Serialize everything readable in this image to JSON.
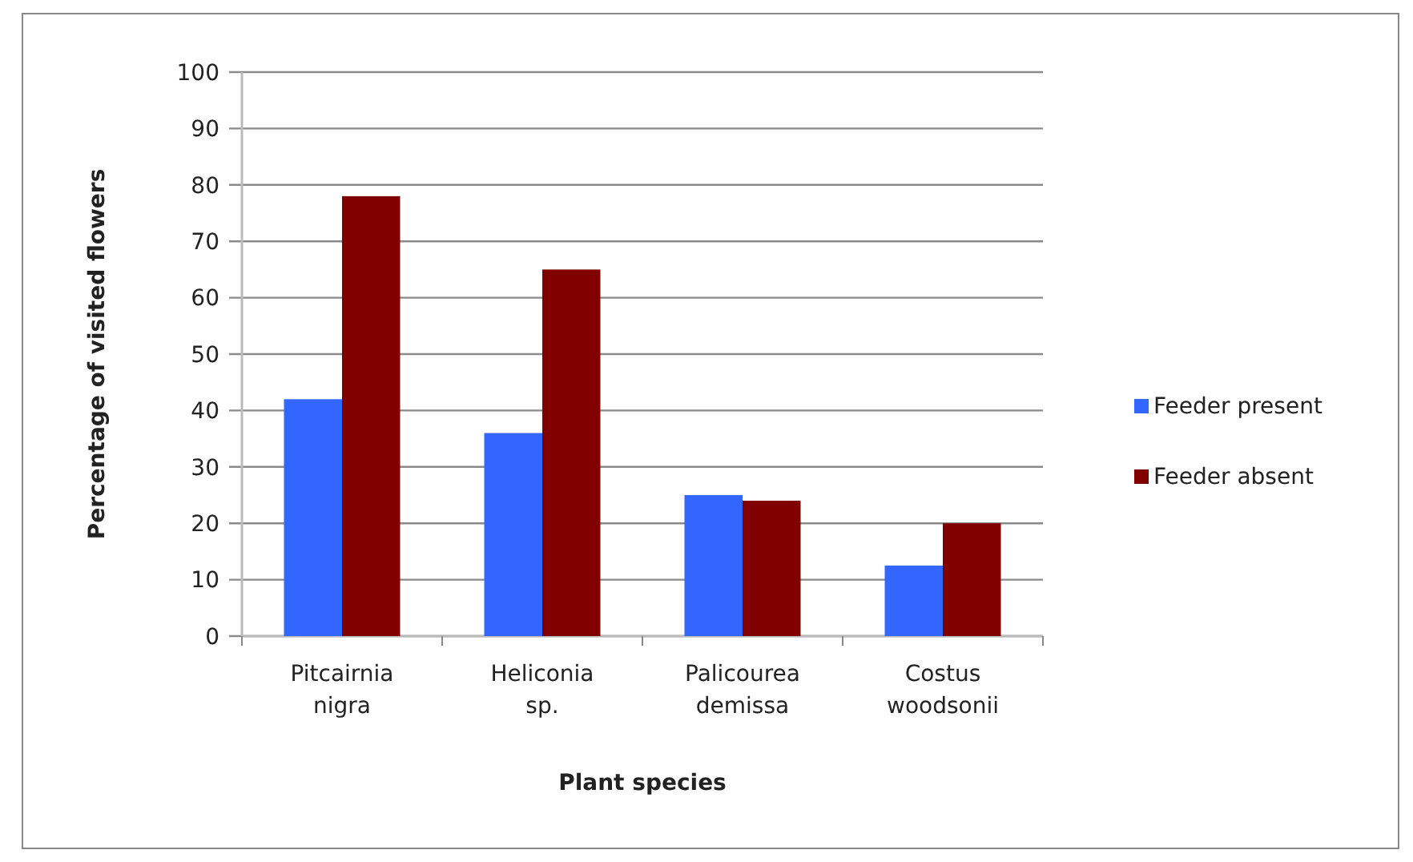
{
  "chart_data": {
    "type": "bar",
    "xlabel": "Plant species",
    "ylabel": "Percentage of visited flowers",
    "categories": [
      "Pitcairnia nigra",
      "Heliconia sp.",
      "Palicourea demissa",
      "Costus woodsonii"
    ],
    "series": [
      {
        "name": "Feeder present",
        "color": "#3366ff",
        "values": [
          42,
          36,
          25,
          12.5
        ]
      },
      {
        "name": "Feeder absent",
        "color": "#800000",
        "values": [
          78,
          65,
          24,
          20
        ]
      }
    ],
    "ylim": [
      0,
      100
    ],
    "yticks": [
      0,
      10,
      20,
      30,
      40,
      50,
      60,
      70,
      80,
      90,
      100
    ],
    "grid": "y",
    "legend": "right"
  }
}
